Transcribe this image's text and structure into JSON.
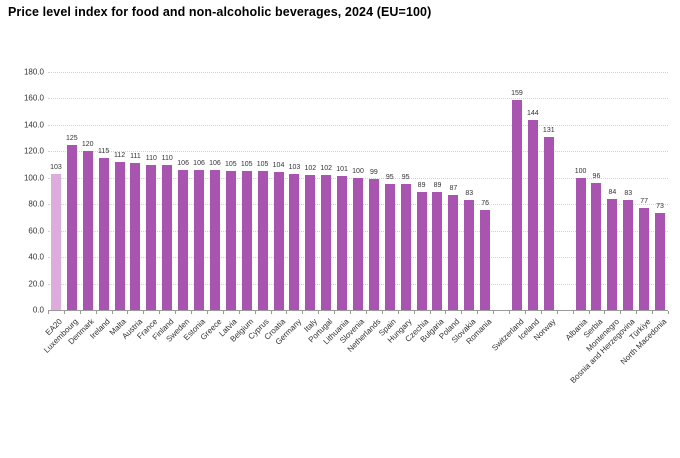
{
  "chart_data": {
    "type": "bar",
    "title": "Price level index for food and non-alcoholic beverages, 2024 (EU=100)",
    "xlabel": "",
    "ylabel": "",
    "ylim": [
      0,
      180
    ],
    "ytick_labels": [
      "0.0",
      "20.0",
      "40.0",
      "60.0",
      "80.0",
      "100.0",
      "120.0",
      "140.0",
      "160.0",
      "180.0"
    ],
    "grid": true,
    "legend": false,
    "value_labels_shown": true,
    "highlighted_category": "EA20",
    "gaps_after": [
      "Romania",
      "Norway"
    ],
    "categories": [
      "EA20",
      "Luxembourg",
      "Denmark",
      "Ireland",
      "Malta",
      "Austria",
      "France",
      "Finland",
      "Sweden",
      "Estonia",
      "Greece",
      "Latvia",
      "Belgium",
      "Cyprus",
      "Croatia",
      "Germany",
      "Italy",
      "Portugal",
      "Lithuania",
      "Slovenia",
      "Netherlands",
      "Spain",
      "Hungary",
      "Czechia",
      "Bulgaria",
      "Poland",
      "Slovakia",
      "Romania",
      "Switzerland",
      "Iceland",
      "Norway",
      "Albania",
      "Serbia",
      "Montenegro",
      "Bosnia and Herzegovina",
      "Türkiye",
      "North Macedonia"
    ],
    "values": [
      103,
      125,
      120,
      115,
      112,
      111,
      110,
      110,
      106,
      106,
      106,
      105,
      105,
      105,
      104,
      103,
      102,
      102,
      101,
      100,
      99,
      95,
      95,
      89,
      89,
      87,
      83,
      76,
      159,
      144,
      131,
      100,
      96,
      84,
      83,
      77,
      73
    ],
    "colors": {
      "bar": "#a854b0",
      "highlight_bar": "#ddacdc",
      "grid": "#d2d2d2",
      "axis": "#9a9a9a",
      "tick_text": "#333333",
      "value_text": "#333333",
      "title_text": "#000000"
    }
  }
}
